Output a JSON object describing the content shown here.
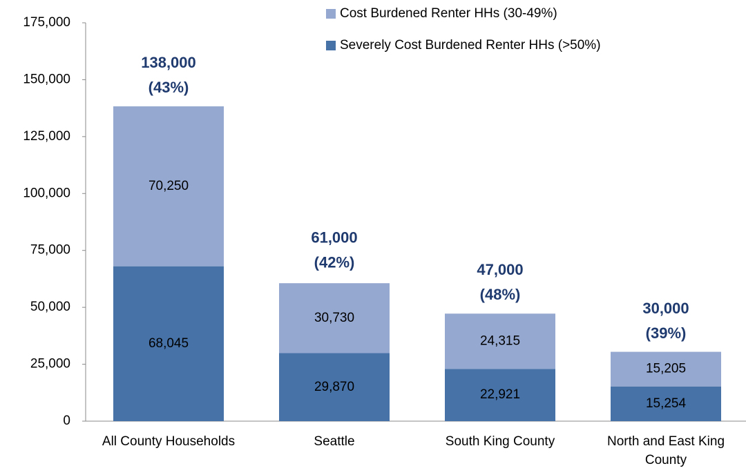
{
  "chart_data": {
    "type": "stacked_bar",
    "categories": [
      "All County Households",
      "Seattle",
      "South King County",
      "North and East King County"
    ],
    "series": [
      {
        "name": "Severely Cost Burdened Renter HHs (>50%)",
        "color": "#4672a8",
        "values": [
          68045,
          29870,
          22921,
          15254
        ],
        "value_labels": [
          "68,045",
          "29,870",
          "22,921",
          "15,254"
        ]
      },
      {
        "name": "Cost Burdened Renter HHs (30-49%)",
        "color": "#95a8d0",
        "values": [
          70250,
          30730,
          24315,
          15205
        ],
        "value_labels": [
          "70,250",
          "30,730",
          "24,315",
          "15,205"
        ]
      }
    ],
    "totals": {
      "values": [
        138000,
        61000,
        47000,
        30000
      ],
      "value_labels": [
        "138,000",
        "61,000",
        "47,000",
        "30,000"
      ]
    },
    "shares": {
      "values": [
        43,
        42,
        48,
        39
      ],
      "value_labels": [
        "(43%)",
        "(42%)",
        "(48%)",
        "(39%)"
      ]
    },
    "ylim": [
      0,
      175000
    ],
    "yticks": [
      {
        "value": 0,
        "label": "0"
      },
      {
        "value": 25000,
        "label": "25,000"
      },
      {
        "value": 50000,
        "label": "50,000"
      },
      {
        "value": 75000,
        "label": "75,000"
      },
      {
        "value": 100000,
        "label": "100,000"
      },
      {
        "value": 125000,
        "label": "125,000"
      },
      {
        "value": 150000,
        "label": "150,000"
      },
      {
        "value": 175000,
        "label": "175,000"
      }
    ],
    "grid": false
  }
}
